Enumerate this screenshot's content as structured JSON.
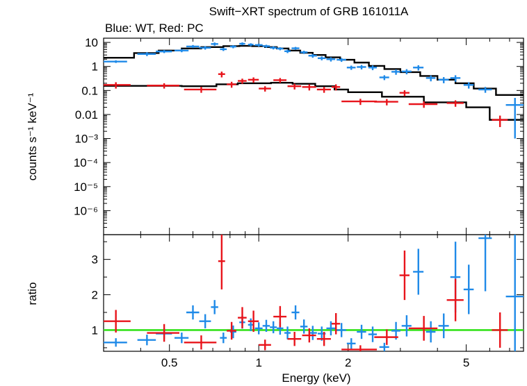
{
  "title": "Swift−XRT spectrum of GRB 161011A",
  "subtitle": "Blue: WT, Red: PC",
  "colors": {
    "wt": "#1f8ae8",
    "pc": "#e8141b",
    "model": "#000000",
    "unity": "#33e21a"
  },
  "chart_data": [
    {
      "type": "scatter",
      "panel": "spectrum",
      "xscale": "log",
      "yscale": "log",
      "xlim": [
        0.3,
        7.8
      ],
      "ylim": [
        1e-07,
        15
      ],
      "ylabel": "counts s⁻¹ keV⁻¹",
      "yticks": [
        {
          "v": 10,
          "label": "10"
        },
        {
          "v": 1,
          "label": "1"
        },
        {
          "v": 0.1,
          "label": "0.1"
        },
        {
          "v": 0.01,
          "label": "0.01"
        },
        {
          "v": 0.001,
          "label": "10⁻³"
        },
        {
          "v": 0.0001,
          "label": "10⁻⁴"
        },
        {
          "v": 1e-05,
          "label": "10⁻⁵"
        },
        {
          "v": 1e-06,
          "label": "10⁻⁶"
        }
      ],
      "series": [
        {
          "key": "wt",
          "points": [
            [
              0.33,
              1.6,
              0.03,
              0.2
            ],
            [
              0.42,
              3.3,
              0.03,
              0.6
            ],
            [
              0.48,
              4.2,
              0.03,
              0.6
            ],
            [
              0.55,
              4.6,
              0.03,
              0.7
            ],
            [
              0.6,
              6.8,
              0.03,
              1.0
            ],
            [
              0.66,
              6.0,
              0.03,
              1.0
            ],
            [
              0.71,
              8.6,
              0.02,
              1.3
            ],
            [
              0.76,
              5.2,
              0.02,
              0.8
            ],
            [
              0.82,
              6.7,
              0.02,
              1.0
            ],
            [
              0.88,
              8.8,
              0.02,
              1.2
            ],
            [
              0.94,
              8.1,
              0.02,
              1.1
            ],
            [
              1.0,
              7.8,
              0.03,
              1.1
            ],
            [
              1.06,
              7.0,
              0.03,
              1.0
            ],
            [
              1.12,
              6.0,
              0.03,
              0.9
            ],
            [
              1.18,
              5.5,
              0.03,
              0.8
            ],
            [
              1.25,
              4.3,
              0.03,
              0.7
            ],
            [
              1.33,
              5.7,
              0.04,
              0.8
            ],
            [
              1.42,
              3.9,
              0.04,
              0.6
            ],
            [
              1.52,
              2.8,
              0.05,
              0.5
            ],
            [
              1.63,
              2.2,
              0.05,
              0.4
            ],
            [
              1.75,
              2.0,
              0.06,
              0.4
            ],
            [
              1.9,
              1.9,
              0.07,
              0.35
            ],
            [
              2.05,
              0.9,
              0.07,
              0.18
            ],
            [
              2.22,
              0.95,
              0.08,
              0.2
            ],
            [
              2.42,
              0.9,
              0.08,
              0.2
            ],
            [
              2.65,
              0.35,
              0.1,
              0.08
            ],
            [
              2.9,
              0.6,
              0.1,
              0.15
            ],
            [
              3.15,
              0.62,
              0.12,
              0.15
            ],
            [
              3.45,
              0.9,
              0.14,
              0.22
            ],
            [
              3.8,
              0.33,
              0.14,
              0.09
            ],
            [
              4.2,
              0.28,
              0.17,
              0.08
            ],
            [
              4.6,
              0.33,
              0.18,
              0.1
            ],
            [
              5.1,
              0.17,
              0.2,
              0.05
            ],
            [
              5.8,
              0.11,
              0.3,
              0.03
            ],
            [
              7.3,
              0.025,
              0.5,
              0.024
            ]
          ]
        },
        {
          "key": "pc",
          "points": [
            [
              0.33,
              0.17,
              0.04,
              0.05
            ],
            [
              0.48,
              0.16,
              0.06,
              0.04
            ],
            [
              0.64,
              0.11,
              0.08,
              0.03
            ],
            [
              0.75,
              0.48,
              0.02,
              0.13
            ],
            [
              0.81,
              0.18,
              0.03,
              0.05
            ],
            [
              0.88,
              0.25,
              0.03,
              0.06
            ],
            [
              0.96,
              0.28,
              0.04,
              0.07
            ],
            [
              1.05,
              0.12,
              0.05,
              0.03
            ],
            [
              1.18,
              0.27,
              0.06,
              0.06
            ],
            [
              1.32,
              0.15,
              0.07,
              0.04
            ],
            [
              1.48,
              0.14,
              0.08,
              0.04
            ],
            [
              1.66,
              0.11,
              0.09,
              0.03
            ],
            [
              1.82,
              0.14,
              0.06,
              0.04
            ],
            [
              2.2,
              0.035,
              0.3,
              0.01
            ],
            [
              2.7,
              0.034,
              0.25,
              0.01
            ],
            [
              3.1,
              0.08,
              0.12,
              0.022
            ],
            [
              3.6,
              0.027,
              0.4,
              0.008
            ],
            [
              4.6,
              0.03,
              0.3,
              0.009
            ],
            [
              6.5,
              0.006,
              0.4,
              0.003
            ]
          ]
        }
      ],
      "models": [
        {
          "key": "wt",
          "steps": [
            [
              0.3,
              2.3
            ],
            [
              0.38,
              3.6
            ],
            [
              0.46,
              4.6
            ],
            [
              0.55,
              5.6
            ],
            [
              0.64,
              6.4
            ],
            [
              0.76,
              7.0
            ],
            [
              0.86,
              7.2
            ],
            [
              0.95,
              7.0
            ],
            [
              1.05,
              6.4
            ],
            [
              1.15,
              5.6
            ],
            [
              1.26,
              4.6
            ],
            [
              1.38,
              3.7
            ],
            [
              1.52,
              3.0
            ],
            [
              1.68,
              2.4
            ],
            [
              1.88,
              1.9
            ],
            [
              2.1,
              1.45
            ],
            [
              2.35,
              1.05
            ],
            [
              2.65,
              0.78
            ],
            [
              3.0,
              0.58
            ],
            [
              3.5,
              0.4
            ],
            [
              4.0,
              0.28
            ],
            [
              4.6,
              0.2
            ],
            [
              5.3,
              0.12
            ],
            [
              6.3,
              0.065
            ],
            [
              7.8,
              0.065
            ]
          ]
        },
        {
          "key": "pc",
          "steps": [
            [
              0.3,
              0.155
            ],
            [
              0.55,
              0.15
            ],
            [
              0.72,
              0.18
            ],
            [
              0.85,
              0.2
            ],
            [
              1.1,
              0.21
            ],
            [
              1.3,
              0.19
            ],
            [
              1.55,
              0.15
            ],
            [
              1.8,
              0.11
            ],
            [
              2.0,
              0.085
            ],
            [
              2.6,
              0.055
            ],
            [
              3.6,
              0.032
            ],
            [
              5.0,
              0.02
            ],
            [
              6.0,
              0.006
            ],
            [
              7.8,
              0.006
            ]
          ]
        }
      ]
    },
    {
      "type": "scatter",
      "panel": "ratio",
      "xscale": "log",
      "xlim": [
        0.3,
        7.8
      ],
      "ylim": [
        0.4,
        3.7
      ],
      "xlabel": "Energy (keV)",
      "ylabel": "ratio",
      "xticks": [
        {
          "v": 0.5,
          "label": "0.5"
        },
        {
          "v": 1,
          "label": "1"
        },
        {
          "v": 2,
          "label": "2"
        },
        {
          "v": 5,
          "label": "5"
        }
      ],
      "yticks": [
        {
          "v": 1,
          "label": "1"
        },
        {
          "v": 2,
          "label": "2"
        },
        {
          "v": 3,
          "label": "3"
        }
      ],
      "reference_line": 1,
      "series": [
        {
          "key": "wt",
          "points": [
            [
              0.33,
              0.65,
              0.03,
              0.12
            ],
            [
              0.42,
              0.72,
              0.03,
              0.15
            ],
            [
              0.48,
              0.9,
              0.03,
              0.15
            ],
            [
              0.55,
              0.78,
              0.03,
              0.15
            ],
            [
              0.6,
              1.5,
              0.03,
              0.2
            ],
            [
              0.66,
              1.25,
              0.03,
              0.2
            ],
            [
              0.71,
              1.65,
              0.02,
              0.2
            ],
            [
              0.76,
              0.78,
              0.02,
              0.15
            ],
            [
              0.82,
              0.95,
              0.02,
              0.18
            ],
            [
              0.88,
              1.22,
              0.02,
              0.18
            ],
            [
              0.94,
              1.15,
              0.02,
              0.18
            ],
            [
              1.0,
              1.05,
              0.03,
              0.17
            ],
            [
              1.06,
              1.12,
              0.03,
              0.17
            ],
            [
              1.12,
              1.08,
              0.03,
              0.17
            ],
            [
              1.18,
              1.05,
              0.03,
              0.18
            ],
            [
              1.25,
              0.92,
              0.03,
              0.18
            ],
            [
              1.33,
              1.5,
              0.04,
              0.2
            ],
            [
              1.42,
              1.1,
              0.04,
              0.2
            ],
            [
              1.52,
              0.92,
              0.05,
              0.2
            ],
            [
              1.63,
              0.9,
              0.05,
              0.2
            ],
            [
              1.75,
              1.05,
              0.06,
              0.2
            ],
            [
              1.9,
              1.0,
              0.07,
              0.2
            ],
            [
              2.05,
              0.62,
              0.07,
              0.15
            ],
            [
              2.22,
              0.95,
              0.08,
              0.2
            ],
            [
              2.42,
              0.88,
              0.08,
              0.22
            ],
            [
              2.65,
              0.52,
              0.1,
              0.12
            ],
            [
              2.9,
              0.98,
              0.1,
              0.25
            ],
            [
              3.15,
              1.12,
              0.12,
              0.3
            ],
            [
              3.45,
              2.65,
              0.14,
              0.65
            ],
            [
              3.8,
              0.95,
              0.14,
              0.3
            ],
            [
              4.2,
              1.12,
              0.17,
              0.35
            ],
            [
              4.6,
              2.5,
              0.18,
              1.0
            ],
            [
              5.1,
              2.15,
              0.2,
              0.7
            ],
            [
              5.8,
              3.6,
              0.3,
              1.5
            ],
            [
              7.3,
              1.95,
              0.5,
              1.8
            ]
          ]
        },
        {
          "key": "pc",
          "points": [
            [
              0.33,
              1.25,
              0.04,
              0.32
            ],
            [
              0.48,
              0.92,
              0.06,
              0.25
            ],
            [
              0.64,
              0.65,
              0.08,
              0.2
            ],
            [
              0.75,
              2.95,
              0.02,
              0.8
            ],
            [
              0.81,
              0.98,
              0.03,
              0.25
            ],
            [
              0.88,
              1.35,
              0.03,
              0.3
            ],
            [
              0.96,
              1.25,
              0.04,
              0.3
            ],
            [
              1.05,
              0.58,
              0.05,
              0.15
            ],
            [
              1.18,
              1.38,
              0.06,
              0.3
            ],
            [
              1.32,
              0.75,
              0.07,
              0.2
            ],
            [
              1.48,
              0.85,
              0.08,
              0.2
            ],
            [
              1.66,
              0.75,
              0.09,
              0.2
            ],
            [
              1.82,
              1.18,
              0.06,
              0.3
            ],
            [
              2.2,
              0.45,
              0.3,
              0.12
            ],
            [
              2.7,
              0.8,
              0.25,
              0.22
            ],
            [
              3.1,
              2.55,
              0.12,
              0.7
            ],
            [
              3.6,
              1.05,
              0.4,
              0.35
            ],
            [
              4.6,
              1.85,
              0.3,
              0.6
            ],
            [
              6.5,
              1.0,
              0.4,
              0.5
            ]
          ]
        }
      ]
    }
  ]
}
